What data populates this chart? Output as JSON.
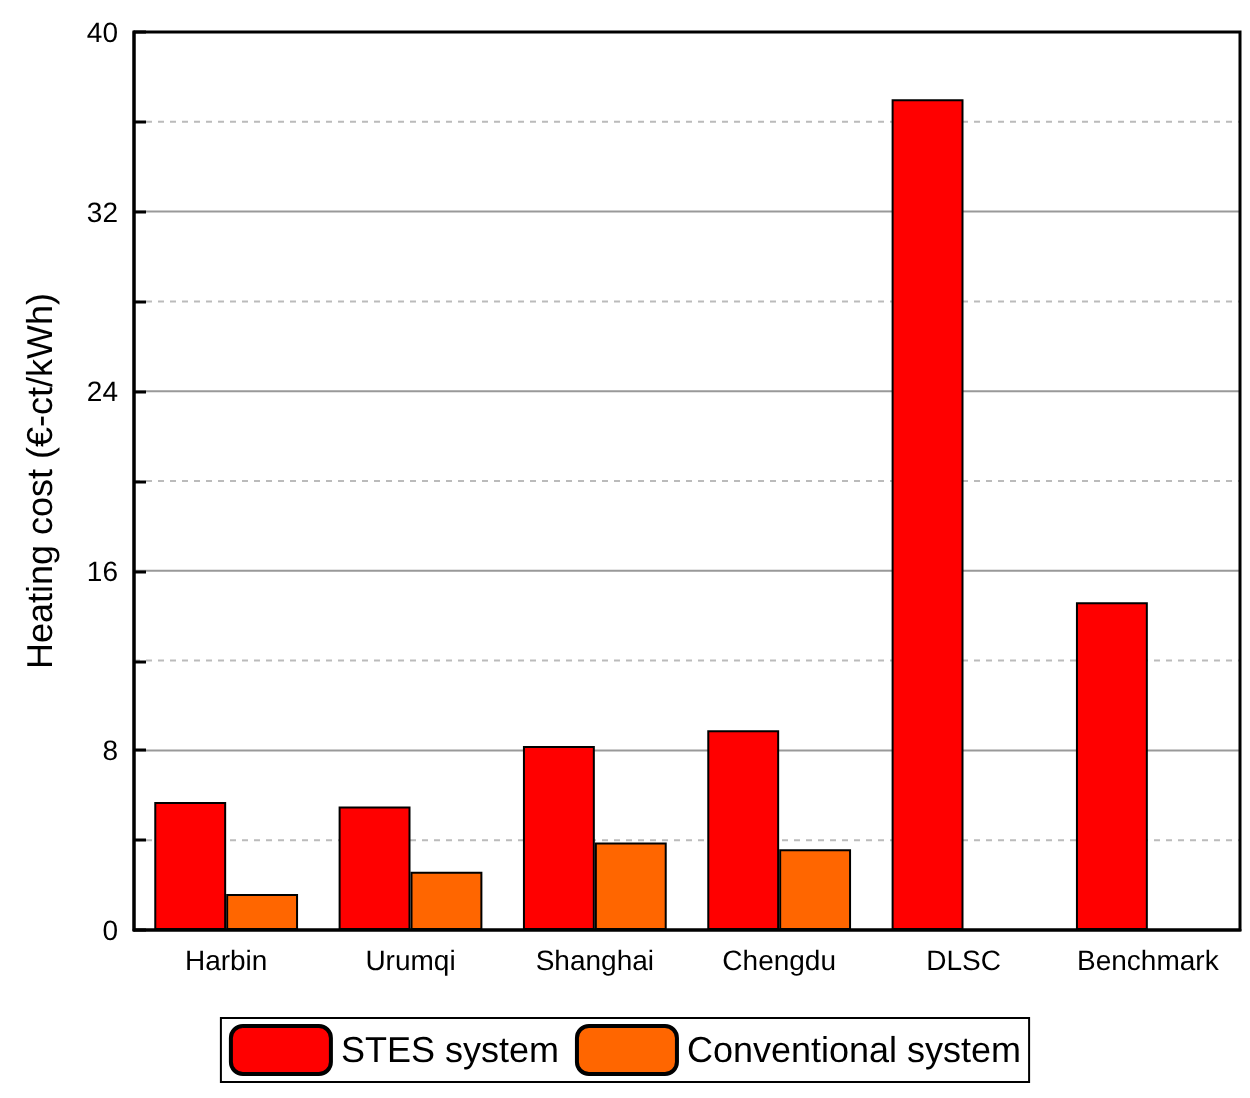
{
  "chart_data": {
    "type": "bar",
    "ylabel": "Heating cost (€-ct/kWh)",
    "categories": [
      "Harbin",
      "Urumqi",
      "Shanghai",
      "Chengdu",
      "DLSC",
      "Benchmark"
    ],
    "series": [
      {
        "name": "STES system",
        "color": "#ff0000",
        "values": [
          5.7,
          5.5,
          8.2,
          8.9,
          37.0,
          14.6
        ]
      },
      {
        "name": "Conventional system",
        "color": "#ff6600",
        "values": [
          1.6,
          2.6,
          3.9,
          3.6,
          null,
          null
        ]
      }
    ],
    "ylim": [
      0,
      40
    ],
    "yticks": [
      0,
      {
        "value": 4,
        "label": null
      },
      8,
      {
        "value": 12,
        "label": null
      },
      16,
      {
        "value": 20,
        "label": null
      },
      24,
      {
        "value": 28,
        "label": null
      },
      32,
      {
        "value": 36,
        "label": null
      },
      40
    ],
    "grid": "y",
    "legend": "bottom"
  }
}
